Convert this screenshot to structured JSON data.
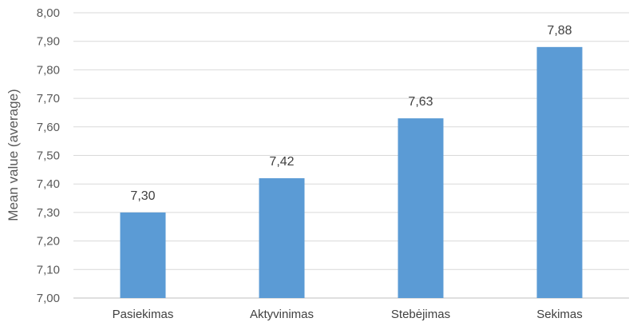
{
  "chart_data": {
    "type": "bar",
    "title": "",
    "xlabel": "",
    "ylabel": "Mean value (average)",
    "ylim": [
      7.0,
      8.0
    ],
    "y_ticks": [
      "7,00",
      "7,10",
      "7,20",
      "7,30",
      "7,40",
      "7,50",
      "7,60",
      "7,70",
      "7,80",
      "7,90",
      "8,00"
    ],
    "categories": [
      "Pasiekimas",
      "Aktyvinimas",
      "Stebėjimas",
      "Sekimas"
    ],
    "values": [
      7.3,
      7.42,
      7.63,
      7.88
    ],
    "data_labels": [
      "7,30",
      "7,42",
      "7,63",
      "7,88"
    ],
    "grid": true,
    "legend": "none",
    "colors": {
      "bar": "#5b9bd5",
      "grid": "#d9d9d9",
      "axis": "#bfbfbf"
    }
  }
}
